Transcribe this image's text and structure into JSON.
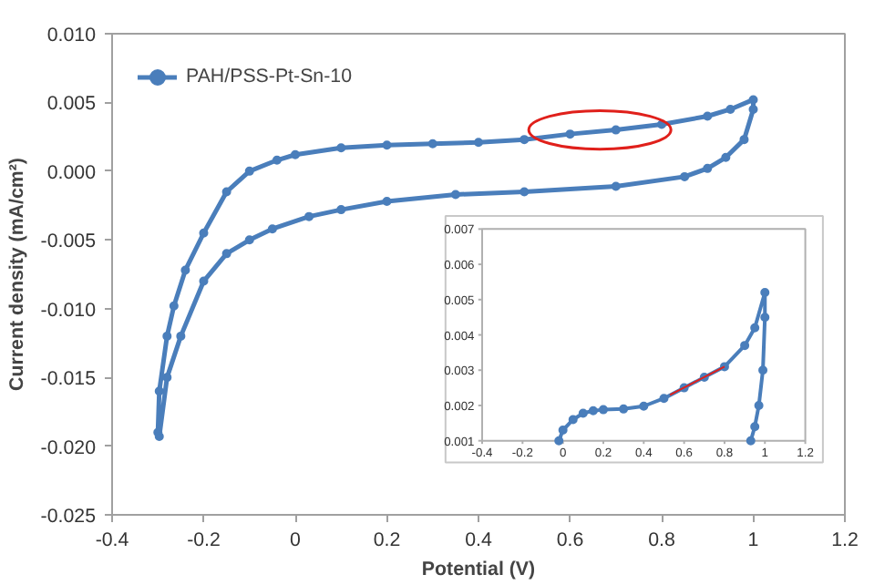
{
  "chart_data": [
    {
      "type": "line",
      "xlabel": "Potential (V)",
      "ylabel": "Current density (mA/cm²)",
      "xlim": [
        -0.4,
        1.2
      ],
      "ylim": [
        -0.025,
        0.01
      ],
      "xticks": [
        -0.4,
        -0.2,
        0,
        0.2,
        0.4,
        0.6,
        0.8,
        1,
        1.2
      ],
      "yticks": [
        {
          "value": -0.025,
          "label": "-0.025"
        },
        {
          "value": -0.02,
          "label": "-0.020"
        },
        {
          "value": -0.015,
          "label": "-0.015"
        },
        {
          "value": -0.01,
          "label": "-0.010"
        },
        {
          "value": -0.005,
          "label": "-0.005"
        },
        {
          "value": 0,
          "label": "0.000"
        },
        {
          "value": 0.005,
          "label": "0.005"
        },
        {
          "value": 0.01,
          "label": "0.010"
        }
      ],
      "grid": false,
      "legend": "top left",
      "marker": "circle",
      "line_style": "solid",
      "series": [
        {
          "name": "PAH/PSS-Pt-Sn-10",
          "color": "#4a7ebb",
          "x": [
            -0.3,
            -0.297,
            -0.28,
            -0.265,
            -0.24,
            -0.2,
            -0.15,
            -0.1,
            -0.04,
            0.0,
            0.1,
            0.2,
            0.3,
            0.4,
            0.5,
            0.6,
            0.7,
            0.8,
            0.9,
            0.95,
            1.0,
            1.0,
            0.98,
            0.94,
            0.9,
            0.85,
            0.7,
            0.5,
            0.35,
            0.2,
            0.1,
            0.03,
            -0.05,
            -0.1,
            -0.15,
            -0.2,
            -0.25,
            -0.28,
            -0.297
          ],
          "values": [
            -0.019,
            -0.016,
            -0.012,
            -0.0098,
            -0.0072,
            -0.0045,
            -0.0015,
            0.0,
            0.0008,
            0.0012,
            0.0017,
            0.0019,
            0.002,
            0.0021,
            0.0023,
            0.0027,
            0.003,
            0.0034,
            0.004,
            0.0045,
            0.0052,
            0.0045,
            0.0023,
            0.001,
            0.0002,
            -0.0004,
            -0.0011,
            -0.0015,
            -0.0017,
            -0.0022,
            -0.0028,
            -0.0033,
            -0.0042,
            -0.005,
            -0.006,
            -0.008,
            -0.012,
            -0.015,
            -0.0193
          ]
        }
      ]
    },
    {
      "type": "line",
      "xlim": [
        -0.4,
        1.2
      ],
      "ylim": [
        0.001,
        0.007
      ],
      "xticks": [
        -0.4,
        -0.2,
        0,
        0.2,
        0.4,
        0.6,
        0.8,
        1,
        1.2
      ],
      "yticks": [
        {
          "value": 0.001,
          "label": "0.001"
        },
        {
          "value": 0.002,
          "label": "0.002"
        },
        {
          "value": 0.003,
          "label": "0.003"
        },
        {
          "value": 0.004,
          "label": "0.004"
        },
        {
          "value": 0.005,
          "label": "0.005"
        },
        {
          "value": 0.006,
          "label": "0.006"
        },
        {
          "value": 0.007,
          "label": "0.007"
        }
      ],
      "grid": false,
      "marker": "circle",
      "line_style": "solid",
      "series": [
        {
          "color": "#4a7ebb",
          "x": [
            -0.02,
            0.0,
            0.05,
            0.1,
            0.15,
            0.2,
            0.3,
            0.4,
            0.5,
            0.6,
            0.7,
            0.8,
            0.9,
            0.95,
            1.0,
            1.0,
            0.99,
            0.97,
            0.95,
            0.93
          ],
          "values": [
            0.001,
            0.0013,
            0.0016,
            0.00178,
            0.00185,
            0.00188,
            0.0019,
            0.00198,
            0.0022,
            0.0025,
            0.0028,
            0.0031,
            0.0037,
            0.0042,
            0.0052,
            0.0045,
            0.003,
            0.002,
            0.0014,
            0.001
          ]
        },
        {
          "type": "line",
          "marker": "none",
          "color": "#e0201b",
          "x": [
            0.53,
            0.8
          ],
          "values": [
            0.0023,
            0.0031
          ]
        }
      ]
    }
  ]
}
